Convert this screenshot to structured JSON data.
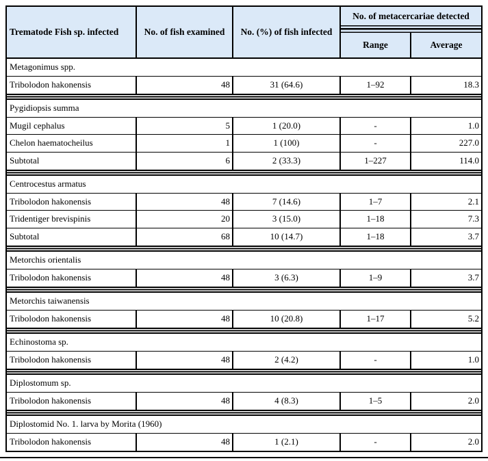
{
  "colors": {
    "header_background": "#dbe9f8",
    "border": "#000000",
    "text": "#000000"
  },
  "table": {
    "header": {
      "col_species": "Trematode Fish sp. infected",
      "col_examined": "No. of fish examined",
      "col_infected": "No. (%) of fish infected",
      "col_metacercariae": "No. of metacercariae detected",
      "col_range": "Range",
      "col_average": "Average"
    },
    "sections": [
      {
        "name": "Metagonimus spp.",
        "rows": [
          {
            "species": "Tribolodon hakonensis",
            "examined": "48",
            "infected": "31 (64.6)",
            "range": "1–92",
            "average": "18.3"
          }
        ]
      },
      {
        "name": "Pygidiopsis summa",
        "rows": [
          {
            "species": "Mugil cephalus",
            "examined": "5",
            "infected": "1 (20.0)",
            "range": "-",
            "average": "1.0"
          },
          {
            "species": "Chelon haematocheilus",
            "examined": "1",
            "infected": "1 (100)",
            "range": "-",
            "average": "227.0"
          },
          {
            "species": "Subtotal",
            "examined": "6",
            "infected": "2 (33.3)",
            "range": "1–227",
            "average": "114.0"
          }
        ]
      },
      {
        "name": "Centrocestus armatus",
        "rows": [
          {
            "species": "Tribolodon hakonensis",
            "examined": "48",
            "infected": "7 (14.6)",
            "range": "1–7",
            "average": "2.1"
          },
          {
            "species": "Tridentiger brevispinis",
            "examined": "20",
            "infected": "3 (15.0)",
            "range": "1–18",
            "average": "7.3"
          },
          {
            "species": "Subtotal",
            "examined": "68",
            "infected": "10 (14.7)",
            "range": "1–18",
            "average": "3.7"
          }
        ]
      },
      {
        "name": "Metorchis orientalis",
        "rows": [
          {
            "species": "Tribolodon hakonensis",
            "examined": "48",
            "infected": "3 (6.3)",
            "range": "1–9",
            "average": "3.7"
          }
        ]
      },
      {
        "name": "Metorchis taiwanensis",
        "rows": [
          {
            "species": "Tribolodon hakonensis",
            "examined": "48",
            "infected": "10 (20.8)",
            "range": "1–17",
            "average": "5.2"
          }
        ]
      },
      {
        "name": "Echinostoma sp.",
        "rows": [
          {
            "species": "Tribolodon hakonensis",
            "examined": "48",
            "infected": "2 (4.2)",
            "range": "-",
            "average": "1.0"
          }
        ]
      },
      {
        "name": "Diplostomum sp.",
        "rows": [
          {
            "species": "Tribolodon hakonensis",
            "examined": "48",
            "infected": "4 (8.3)",
            "range": "1–5",
            "average": "2.0"
          }
        ]
      },
      {
        "name": "Diplostomid No. 1. larva by Morita (1960)",
        "rows": [
          {
            "species": "Tribolodon hakonensis",
            "examined": "48",
            "infected": "1 (2.1)",
            "range": "-",
            "average": "2.0"
          }
        ]
      }
    ]
  }
}
